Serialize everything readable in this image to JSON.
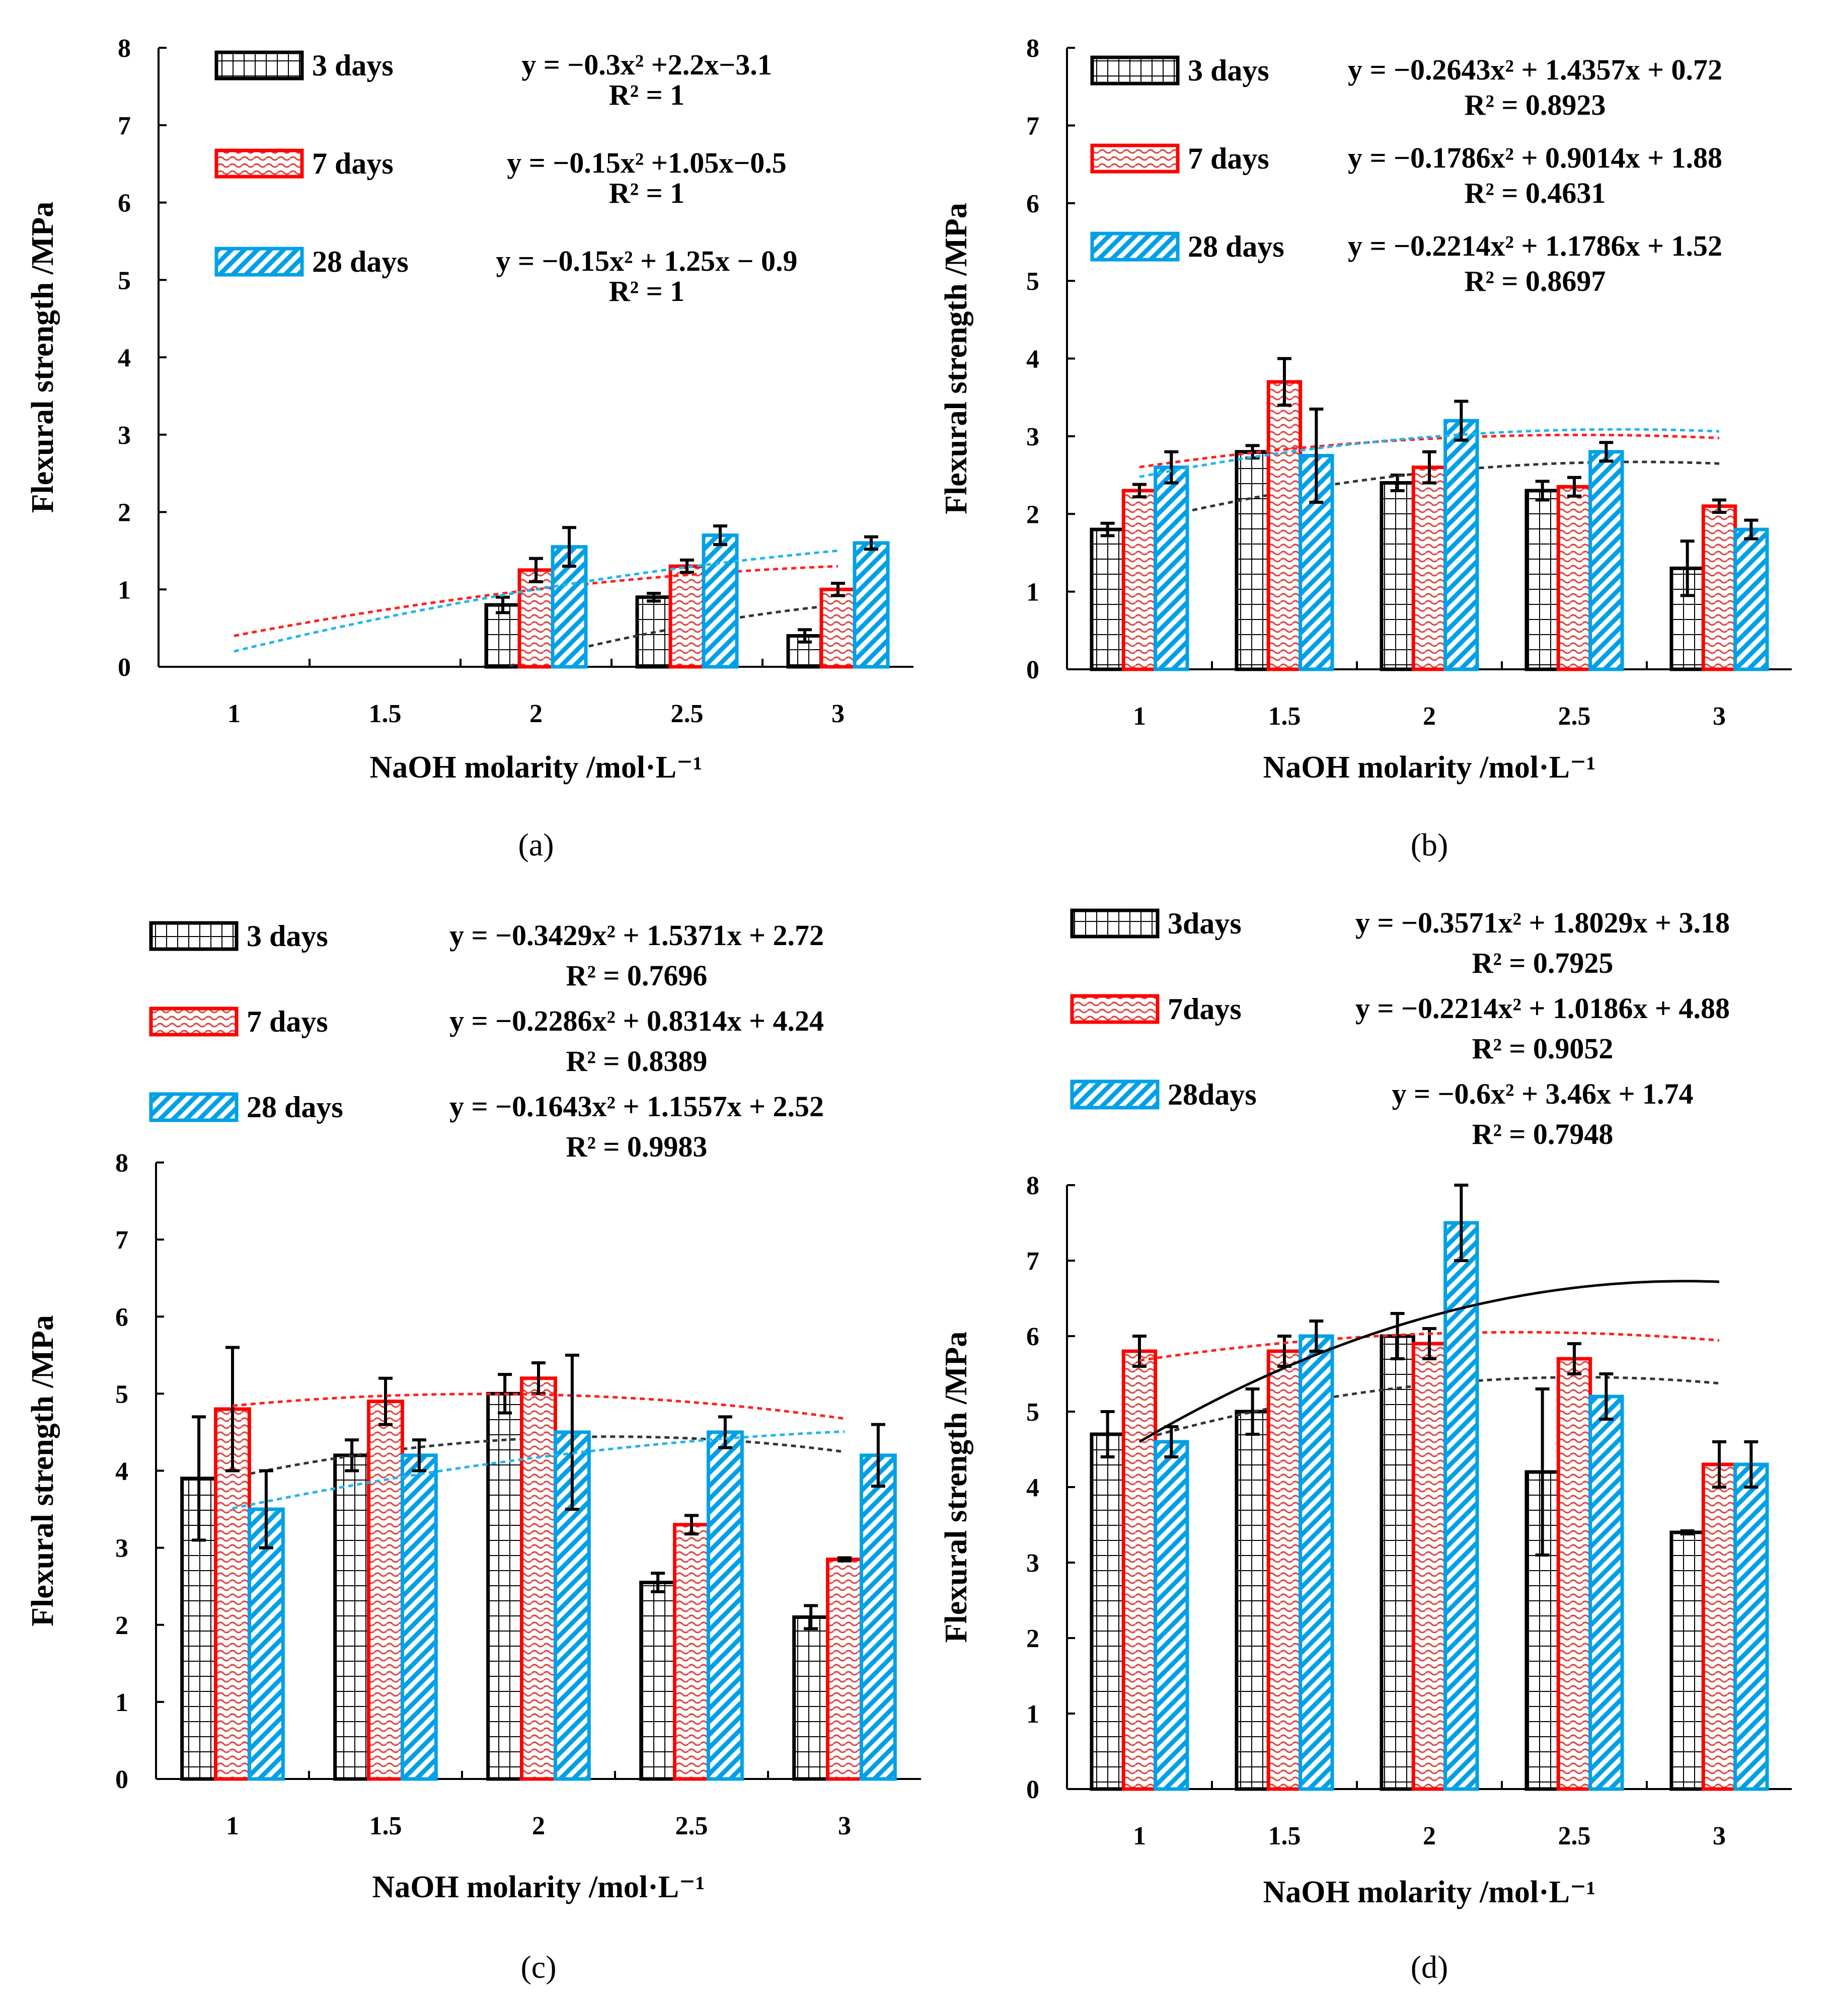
{
  "figure": {
    "series_colors": {
      "3 days": "#000000",
      "7 days": "#ff0000",
      "28 days": "#00a0e6"
    },
    "panel_labels": [
      "(a)",
      "(b)",
      "(c)",
      "(d)"
    ]
  },
  "chart_data": [
    {
      "panel": "a",
      "type": "bar",
      "xlabel": "NaOH molarity /mol·L⁻¹",
      "ylabel": "Flexural strength /MPa",
      "categories": [
        "1",
        "1.5",
        "2",
        "2.5",
        "3"
      ],
      "x": [
        1,
        1.5,
        2,
        2.5,
        3
      ],
      "ylim": [
        0,
        8
      ],
      "yticks": [
        0,
        1,
        2,
        3,
        4,
        5,
        6,
        7,
        8
      ],
      "series": [
        {
          "name": "3 days",
          "label": "3 days",
          "values": [
            null,
            null,
            0.8,
            0.9,
            0.4
          ],
          "errors": [
            null,
            null,
            0.1,
            0.05,
            0.08
          ],
          "equation": "y = −0.3x² +2.2x−3.1",
          "r2": "R² = 1",
          "fit": [
            -0.3,
            2.2,
            -3.1
          ],
          "fit_range": [
            1.5,
            3
          ]
        },
        {
          "name": "7 days",
          "label": "7 days",
          "values": [
            null,
            null,
            1.25,
            1.3,
            1.0
          ],
          "errors": [
            null,
            null,
            0.15,
            0.08,
            0.08
          ],
          "equation": "y = −0.15x² +1.05x−0.5",
          "r2": "R² = 1",
          "fit": [
            -0.15,
            1.05,
            -0.5
          ],
          "fit_range": [
            1,
            3
          ]
        },
        {
          "name": "28 days",
          "label": "28 days",
          "values": [
            null,
            null,
            1.55,
            1.7,
            1.6
          ],
          "errors": [
            null,
            null,
            0.25,
            0.12,
            0.08
          ],
          "equation": "y = −0.15x² + 1.25x − 0.9",
          "r2": "R² = 1",
          "fit": [
            -0.15,
            1.25,
            -0.9
          ],
          "fit_range": [
            1,
            3
          ]
        }
      ]
    },
    {
      "panel": "b",
      "type": "bar",
      "xlabel": "NaOH molarity /mol·L⁻¹",
      "ylabel": "Flexural strength /MPa",
      "categories": [
        "1",
        "1.5",
        "2",
        "2.5",
        "3"
      ],
      "x": [
        1,
        1.5,
        2,
        2.5,
        3
      ],
      "ylim": [
        0,
        8
      ],
      "yticks": [
        0,
        1,
        2,
        3,
        4,
        5,
        6,
        7,
        8
      ],
      "series": [
        {
          "name": "3 days",
          "label": "3 days",
          "values": [
            1.8,
            2.8,
            2.4,
            2.3,
            1.3
          ],
          "errors": [
            0.08,
            0.08,
            0.1,
            0.12,
            0.35
          ],
          "equation": "y = −0.2643x² + 1.4357x + 0.72",
          "r2": "R² = 0.8923",
          "fit": [
            -0.2643,
            1.4357,
            0.72
          ],
          "fit_range": [
            1,
            3
          ]
        },
        {
          "name": "7 days",
          "label": "7 days",
          "values": [
            2.3,
            3.7,
            2.6,
            2.35,
            2.1
          ],
          "errors": [
            0.08,
            0.3,
            0.2,
            0.12,
            0.08
          ],
          "equation": "y = −0.1786x² + 0.9014x + 1.88",
          "r2": "R² = 0.4631",
          "fit": [
            -0.1786,
            0.9014,
            1.88
          ],
          "fit_range": [
            1,
            3
          ]
        },
        {
          "name": "28 days",
          "label": "28 days",
          "values": [
            2.6,
            2.75,
            3.2,
            2.8,
            1.8
          ],
          "errors": [
            0.2,
            0.6,
            0.25,
            0.12,
            0.12
          ],
          "equation": "y = −0.2214x² + 1.1786x + 1.52",
          "r2": "R² = 0.8697",
          "fit": [
            -0.2214,
            1.1786,
            1.52
          ],
          "fit_range": [
            1,
            3
          ]
        }
      ]
    },
    {
      "panel": "c",
      "type": "bar",
      "xlabel": "NaOH molarity /mol·L⁻¹",
      "ylabel": "Flexural strength /MPa",
      "categories": [
        "1",
        "1.5",
        "2",
        "2.5",
        "3"
      ],
      "x": [
        1,
        1.5,
        2,
        2.5,
        3
      ],
      "ylim": [
        0,
        8
      ],
      "yticks": [
        0,
        1,
        2,
        3,
        4,
        5,
        6,
        7,
        8
      ],
      "series": [
        {
          "name": "3 days",
          "label": "3 days",
          "values": [
            3.9,
            4.2,
            5.0,
            2.55,
            2.1
          ],
          "errors": [
            0.8,
            0.2,
            0.25,
            0.12,
            0.15
          ],
          "equation": "y = −0.3429x² + 1.5371x + 2.72",
          "r2": "R² = 0.7696",
          "fit": [
            -0.3429,
            1.5371,
            2.72
          ],
          "fit_range": [
            1,
            3
          ]
        },
        {
          "name": "7 days",
          "label": "7 days",
          "values": [
            4.8,
            4.9,
            5.2,
            3.3,
            2.85
          ],
          "errors": [
            0.8,
            0.3,
            0.2,
            0.12,
            0.02
          ],
          "equation": "y = −0.2286x² + 0.8314x + 4.24",
          "r2": "R² = 0.8389",
          "fit": [
            -0.2286,
            0.8314,
            4.24
          ],
          "fit_range": [
            1,
            3
          ]
        },
        {
          "name": "28 days",
          "label": "28 days",
          "values": [
            3.5,
            4.2,
            4.5,
            4.5,
            4.2
          ],
          "errors": [
            0.5,
            0.2,
            1.0,
            0.2,
            0.4
          ],
          "equation": "y = −0.1643x² + 1.1557x + 2.52",
          "r2": "R² = 0.9983",
          "fit": [
            -0.1643,
            1.1557,
            2.52
          ],
          "fit_range": [
            1,
            3
          ]
        }
      ]
    },
    {
      "panel": "d",
      "type": "bar",
      "xlabel": "NaOH molarity /mol·L⁻¹",
      "ylabel": "Flexural strength /MPa",
      "categories": [
        "1",
        "1.5",
        "2",
        "2.5",
        "3"
      ],
      "x": [
        1,
        1.5,
        2,
        2.5,
        3
      ],
      "ylim": [
        0,
        8
      ],
      "yticks": [
        0,
        1,
        2,
        3,
        4,
        5,
        6,
        7,
        8
      ],
      "series": [
        {
          "name": "3 days",
          "label": "3days",
          "values": [
            4.7,
            5.0,
            6.0,
            4.2,
            3.4
          ],
          "errors": [
            0.3,
            0.3,
            0.3,
            1.1,
            0.02
          ],
          "equation": "y = −0.3571x² + 1.8029x + 3.18",
          "r2": "R² = 0.7925",
          "fit": [
            -0.3571,
            1.8029,
            3.18
          ],
          "fit_range": [
            1,
            3
          ]
        },
        {
          "name": "7 days",
          "label": "7days",
          "values": [
            5.8,
            5.8,
            5.9,
            5.7,
            4.3
          ],
          "errors": [
            0.2,
            0.2,
            0.2,
            0.2,
            0.3
          ],
          "equation": "y = −0.2214x² + 1.0186x + 4.88",
          "r2": "R² = 0.9052",
          "fit": [
            -0.2214,
            1.0186,
            4.88
          ],
          "fit_range": [
            1,
            3
          ]
        },
        {
          "name": "28 days",
          "label": "28days",
          "values": [
            4.6,
            6.0,
            7.5,
            5.2,
            4.3
          ],
          "errors": [
            0.2,
            0.2,
            0.5,
            0.3,
            0.3
          ],
          "equation": "y = −0.6x² + 3.46x + 1.74",
          "r2": "R² = 0.7948",
          "fit": [
            -0.6,
            3.46,
            1.74
          ],
          "fit_range": [
            1,
            3
          ]
        }
      ]
    }
  ]
}
